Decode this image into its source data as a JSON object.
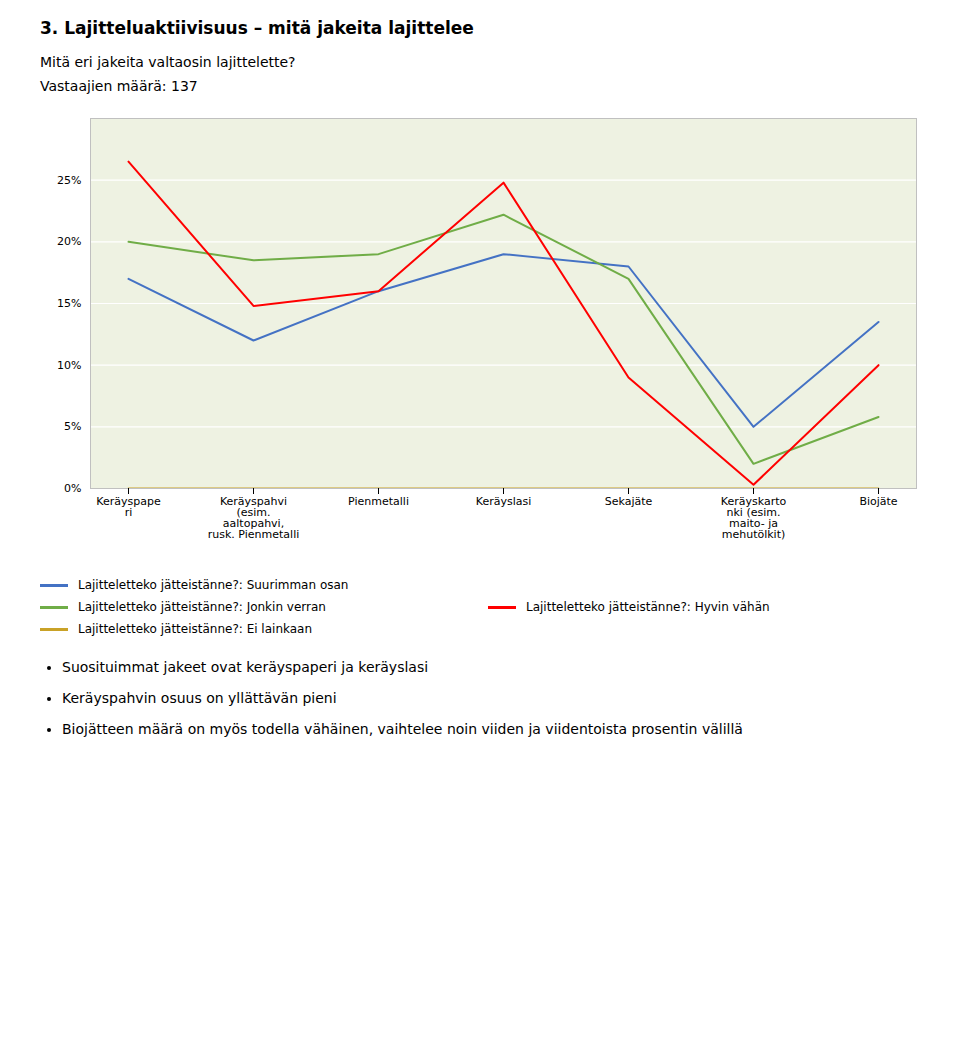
{
  "chart_data": {
    "type": "line",
    "title": "3. Lajitteluaktiivisuus – mitä jakeita lajittelee",
    "subtitle": [
      "Mitä eri jakeita valtaosin lajittelette?",
      "Vastaajien määrä: 137"
    ],
    "categories": [
      "Keräyspape\nri",
      "Keräyspahvi\n(esim.\naaltopahvi,\nrusk. Pienmetalli",
      "Pienmetalli",
      "Keräyslasi",
      "Sekajäte",
      "Keräyskarto\nnki (esim.\nmaito- ja\nmehutölkit)",
      "Biojäte"
    ],
    "series": [
      {
        "name": "Lajitteletteko jätteistänne?: Suurimman osan",
        "color": "#4472C4",
        "values": [
          0.17,
          0.12,
          0.16,
          0.19,
          0.18,
          0.05,
          0.135
        ]
      },
      {
        "name": "Lajitteletteko jätteistänne?: Jonkin verran",
        "color": "#70AD47",
        "values": [
          0.2,
          0.185,
          0.19,
          0.222,
          0.17,
          0.02,
          0.058
        ]
      },
      {
        "name": "Lajitteletteko jätteistänne?: Hyvin vähän",
        "color": "#FF0000",
        "values": [
          0.265,
          0.148,
          0.16,
          0.248,
          0.09,
          0.003,
          0.1
        ]
      },
      {
        "name": "Lajitteletteko jätteistänne?: Ei lainkaan",
        "color": "#C9A227",
        "values": [
          0.0,
          0.0,
          0.0,
          0.0,
          0.0,
          0.0,
          0.0
        ]
      }
    ],
    "ylim": [
      0.0,
      0.3
    ],
    "yticks": [
      {
        "value": 0.0,
        "label": "0%"
      },
      {
        "value": 0.05,
        "label": "5%"
      },
      {
        "value": 0.1,
        "label": "10%"
      },
      {
        "value": 0.15,
        "label": "15%"
      },
      {
        "value": 0.2,
        "label": "20%"
      },
      {
        "value": 0.25,
        "label": "25%"
      }
    ],
    "grid": true,
    "legend": "bottom",
    "annotations": [
      "Suosituimmat jakeet ovat keräyspaperi ja keräyslasi",
      "Keräyspahvin osuus on yllättävän pieni",
      "Biojätteen määrä on myös todella vähäinen, vaihtelee noin viiden ja viidentoista prosentin välillä"
    ]
  }
}
